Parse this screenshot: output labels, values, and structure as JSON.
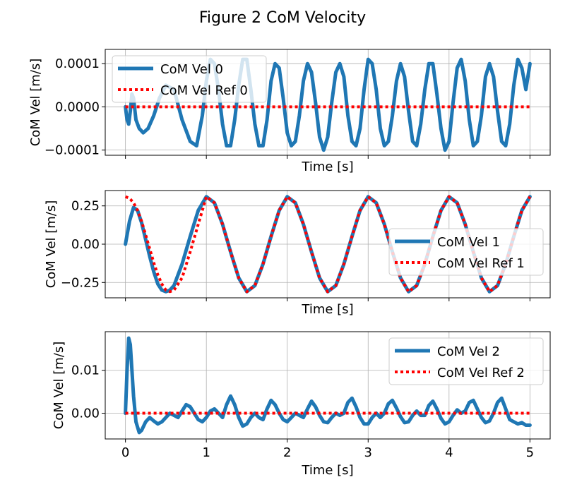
{
  "title": "Figure 2 CoM Velocity",
  "colors": {
    "vel": "#1f77b4",
    "ref": "#ff0000",
    "grid": "#b0b0b0"
  },
  "chart_data": [
    {
      "type": "line",
      "xlabel": "Time [s]",
      "ylabel": "CoM Vel [m/s]",
      "xlim": [
        -0.25,
        5.25
      ],
      "ylim": [
        -0.000112,
        0.000133
      ],
      "xticks": [
        0,
        1,
        2,
        3,
        4,
        5
      ],
      "yticks": [
        -0.0001,
        0.0,
        0.0001
      ],
      "ytick_labels": [
        "−0.0001",
        "0.0000",
        "0.0001"
      ],
      "show_xtick_labels": false,
      "legend_position": "upper-left",
      "grid": true,
      "series": [
        {
          "name": "CoM Vel 0",
          "style": "solid",
          "x": [
            0,
            0.02,
            0.04,
            0.06,
            0.08,
            0.1,
            0.13,
            0.17,
            0.22,
            0.28,
            0.35,
            0.42,
            0.5,
            0.6,
            0.7,
            0.8,
            0.88,
            0.95,
            1.0,
            1.05,
            1.1,
            1.15,
            1.2,
            1.25,
            1.3,
            1.35,
            1.4,
            1.45,
            1.5,
            1.55,
            1.6,
            1.65,
            1.7,
            1.75,
            1.8,
            1.85,
            1.9,
            1.95,
            2.0,
            2.05,
            2.1,
            2.15,
            2.2,
            2.25,
            2.3,
            2.35,
            2.4,
            2.45,
            2.5,
            2.55,
            2.6,
            2.65,
            2.7,
            2.75,
            2.8,
            2.85,
            2.9,
            2.95,
            3.0,
            3.05,
            3.1,
            3.15,
            3.2,
            3.25,
            3.3,
            3.35,
            3.4,
            3.45,
            3.5,
            3.55,
            3.6,
            3.65,
            3.7,
            3.75,
            3.8,
            3.85,
            3.9,
            3.95,
            4.0,
            4.05,
            4.1,
            4.15,
            4.2,
            4.25,
            4.3,
            4.35,
            4.4,
            4.45,
            4.5,
            4.55,
            4.6,
            4.65,
            4.7,
            4.75,
            4.8,
            4.85,
            4.9,
            4.95,
            5.0
          ],
          "y": [
            0,
            -3e-05,
            -4e-05,
            -1e-05,
            3e-05,
            2e-05,
            -3e-05,
            -5e-05,
            -6e-05,
            -5e-05,
            -2e-05,
            2e-05,
            5e-05,
            4e-05,
            -3e-05,
            -8e-05,
            -9e-05,
            -2e-05,
            6e-05,
            0.00011,
            0.0001,
            4e-05,
            -4e-05,
            -9e-05,
            -9e-05,
            -3e-05,
            5e-05,
            0.00011,
            0.00011,
            4e-05,
            -4e-05,
            -9e-05,
            -9e-05,
            -3e-05,
            6e-05,
            0.0001,
            9e-05,
            2e-05,
            -6e-05,
            -9e-05,
            -8e-05,
            -2e-05,
            6e-05,
            0.0001,
            8e-05,
            1e-05,
            -7e-05,
            -0.0001,
            -7e-05,
            1e-05,
            8e-05,
            0.0001,
            7e-05,
            -2e-05,
            -8e-05,
            -9e-05,
            -5e-05,
            4e-05,
            0.00011,
            0.0001,
            4e-05,
            -5e-05,
            -9e-05,
            -8e-05,
            -2e-05,
            6e-05,
            0.0001,
            7e-05,
            -1e-05,
            -8e-05,
            -9e-05,
            -4e-05,
            4e-05,
            0.0001,
            0.0001,
            3e-05,
            -5e-05,
            -0.0001,
            -8e-05,
            1e-05,
            9e-05,
            0.00011,
            6e-05,
            -3e-05,
            -9e-05,
            -8e-05,
            -2e-05,
            7e-05,
            0.0001,
            7e-05,
            -1e-05,
            -8e-05,
            -9e-05,
            -4e-05,
            5e-05,
            0.00011,
            9e-05,
            4e-05,
            0.0001
          ]
        },
        {
          "name": "CoM Vel Ref 0",
          "style": "dotted",
          "x": [
            0,
            5
          ],
          "y": [
            0,
            0
          ]
        }
      ]
    },
    {
      "type": "line",
      "xlabel": "Time [s]",
      "ylabel": "CoM Vel [m/s]",
      "xlim": [
        -0.25,
        5.25
      ],
      "ylim": [
        -0.35,
        0.35
      ],
      "xticks": [
        0,
        1,
        2,
        3,
        4,
        5
      ],
      "yticks": [
        -0.25,
        0.0,
        0.25
      ],
      "ytick_labels": [
        "−0.25",
        "0.00",
        "0.25"
      ],
      "show_xtick_labels": false,
      "legend_position": "center-right",
      "grid": true,
      "series": [
        {
          "name": "CoM Vel 1",
          "style": "solid",
          "x": [
            0,
            0.05,
            0.1,
            0.15,
            0.2,
            0.25,
            0.3,
            0.35,
            0.4,
            0.45,
            0.5,
            0.55,
            0.6,
            0.7,
            0.8,
            0.9,
            1.0,
            1.1,
            1.2,
            1.3,
            1.4,
            1.5,
            1.6,
            1.7,
            1.8,
            1.9,
            2.0,
            2.1,
            2.2,
            2.3,
            2.4,
            2.5,
            2.6,
            2.7,
            2.8,
            2.9,
            3.0,
            3.1,
            3.2,
            3.3,
            3.4,
            3.5,
            3.6,
            3.7,
            3.8,
            3.9,
            4.0,
            4.1,
            4.2,
            4.3,
            4.4,
            4.5,
            4.6,
            4.7,
            4.8,
            4.9,
            5.0
          ],
          "y": [
            0,
            0.15,
            0.24,
            0.22,
            0.14,
            0.03,
            -0.08,
            -0.18,
            -0.26,
            -0.3,
            -0.31,
            -0.3,
            -0.27,
            -0.13,
            0.05,
            0.22,
            0.31,
            0.27,
            0.13,
            -0.05,
            -0.22,
            -0.31,
            -0.27,
            -0.13,
            0.05,
            0.22,
            0.31,
            0.27,
            0.13,
            -0.05,
            -0.22,
            -0.31,
            -0.27,
            -0.13,
            0.05,
            0.22,
            0.31,
            0.27,
            0.13,
            -0.05,
            -0.22,
            -0.31,
            -0.27,
            -0.13,
            0.05,
            0.22,
            0.31,
            0.27,
            0.13,
            -0.05,
            -0.22,
            -0.31,
            -0.27,
            -0.13,
            0.05,
            0.22,
            0.31
          ]
        },
        {
          "name": "CoM Vel Ref 1",
          "style": "dotted",
          "x": [
            0,
            0.05,
            0.1,
            0.15,
            0.2,
            0.25,
            0.3,
            0.35,
            0.4,
            0.45,
            0.5,
            0.55,
            0.6,
            0.7,
            0.8,
            0.9,
            1.0,
            1.1,
            1.2,
            1.3,
            1.4,
            1.5,
            1.6,
            1.7,
            1.8,
            1.9,
            2.0,
            2.1,
            2.2,
            2.3,
            2.4,
            2.5,
            2.6,
            2.7,
            2.8,
            2.9,
            3.0,
            3.1,
            3.2,
            3.3,
            3.4,
            3.5,
            3.6,
            3.7,
            3.8,
            3.9,
            4.0,
            4.1,
            4.2,
            4.3,
            4.4,
            4.5,
            4.6,
            4.7,
            4.8,
            4.9,
            5.0
          ],
          "y": [
            0.31,
            0.3,
            0.27,
            0.22,
            0.15,
            0.06,
            -0.03,
            -0.12,
            -0.2,
            -0.26,
            -0.3,
            -0.31,
            -0.3,
            -0.22,
            -0.05,
            0.13,
            0.31,
            0.27,
            0.13,
            -0.05,
            -0.22,
            -0.31,
            -0.27,
            -0.13,
            0.05,
            0.22,
            0.31,
            0.27,
            0.13,
            -0.05,
            -0.22,
            -0.31,
            -0.27,
            -0.13,
            0.05,
            0.22,
            0.31,
            0.27,
            0.13,
            -0.05,
            -0.22,
            -0.31,
            -0.27,
            -0.13,
            0.05,
            0.22,
            0.31,
            0.27,
            0.13,
            -0.05,
            -0.22,
            -0.31,
            -0.27,
            -0.13,
            0.05,
            0.22,
            0.31
          ]
        }
      ]
    },
    {
      "type": "line",
      "xlabel": "Time [s]",
      "ylabel": "CoM Vel [m/s]",
      "xlim": [
        -0.25,
        5.25
      ],
      "ylim": [
        -0.006,
        0.019
      ],
      "xticks": [
        0,
        1,
        2,
        3,
        4,
        5
      ],
      "yticks": [
        0.0,
        0.01
      ],
      "ytick_labels": [
        "0.00",
        "0.01"
      ],
      "show_xtick_labels": true,
      "legend_position": "upper-right",
      "grid": true,
      "series": [
        {
          "name": "CoM Vel 2",
          "style": "solid",
          "x": [
            0,
            0.02,
            0.04,
            0.06,
            0.08,
            0.1,
            0.13,
            0.17,
            0.2,
            0.25,
            0.3,
            0.35,
            0.4,
            0.45,
            0.5,
            0.55,
            0.6,
            0.65,
            0.7,
            0.75,
            0.8,
            0.85,
            0.9,
            0.95,
            1.0,
            1.05,
            1.1,
            1.15,
            1.2,
            1.25,
            1.3,
            1.35,
            1.4,
            1.45,
            1.5,
            1.55,
            1.6,
            1.65,
            1.7,
            1.75,
            1.8,
            1.85,
            1.9,
            1.95,
            2.0,
            2.05,
            2.1,
            2.15,
            2.2,
            2.25,
            2.3,
            2.35,
            2.4,
            2.45,
            2.5,
            2.55,
            2.6,
            2.65,
            2.7,
            2.75,
            2.8,
            2.85,
            2.9,
            2.95,
            3.0,
            3.05,
            3.1,
            3.15,
            3.2,
            3.25,
            3.3,
            3.35,
            3.4,
            3.45,
            3.5,
            3.55,
            3.6,
            3.65,
            3.7,
            3.75,
            3.8,
            3.85,
            3.9,
            3.95,
            4.0,
            4.05,
            4.1,
            4.15,
            4.2,
            4.25,
            4.3,
            4.35,
            4.4,
            4.45,
            4.5,
            4.55,
            4.6,
            4.65,
            4.7,
            4.75,
            4.8,
            4.85,
            4.9,
            4.95,
            5.0
          ],
          "y": [
            0,
            0.01,
            0.0175,
            0.016,
            0.01,
            0.004,
            -0.002,
            -0.0045,
            -0.004,
            -0.002,
            -0.001,
            -0.0018,
            -0.0025,
            -0.002,
            -0.001,
            0,
            -0.0005,
            -0.001,
            0.0005,
            0.002,
            0.0015,
            0,
            -0.0015,
            -0.002,
            -0.001,
            0.0005,
            0.001,
            0,
            -0.001,
            0.002,
            0.004,
            0.002,
            -0.001,
            -0.003,
            -0.0025,
            -0.001,
            0,
            -0.001,
            -0.0015,
            0.001,
            0.003,
            0.002,
            0,
            -0.0015,
            -0.002,
            -0.001,
            0,
            -0.0005,
            -0.001,
            0.001,
            0.0028,
            0.0015,
            -0.0005,
            -0.002,
            -0.0022,
            -0.001,
            0,
            -0.0005,
            0,
            0.0025,
            0.0035,
            0.0015,
            -0.001,
            -0.0025,
            -0.0025,
            -0.001,
            0,
            -0.001,
            0,
            0.0022,
            0.003,
            0.0012,
            -0.0008,
            -0.0022,
            -0.002,
            -0.0005,
            0.0005,
            -0.0005,
            -0.0005,
            0.0018,
            0.0028,
            0.001,
            -0.0012,
            -0.0025,
            -0.002,
            -0.0005,
            0.0008,
            0,
            0.0005,
            0.0025,
            0.003,
            0.001,
            -0.001,
            -0.0022,
            -0.0018,
            0,
            0.0025,
            0.0035,
            0.001,
            -0.0015,
            -0.002,
            -0.0025,
            -0.0022,
            -0.0028,
            -0.0028
          ]
        },
        {
          "name": "CoM Vel Ref 2",
          "style": "dotted",
          "x": [
            0,
            5
          ],
          "y": [
            0,
            0
          ]
        }
      ]
    }
  ]
}
